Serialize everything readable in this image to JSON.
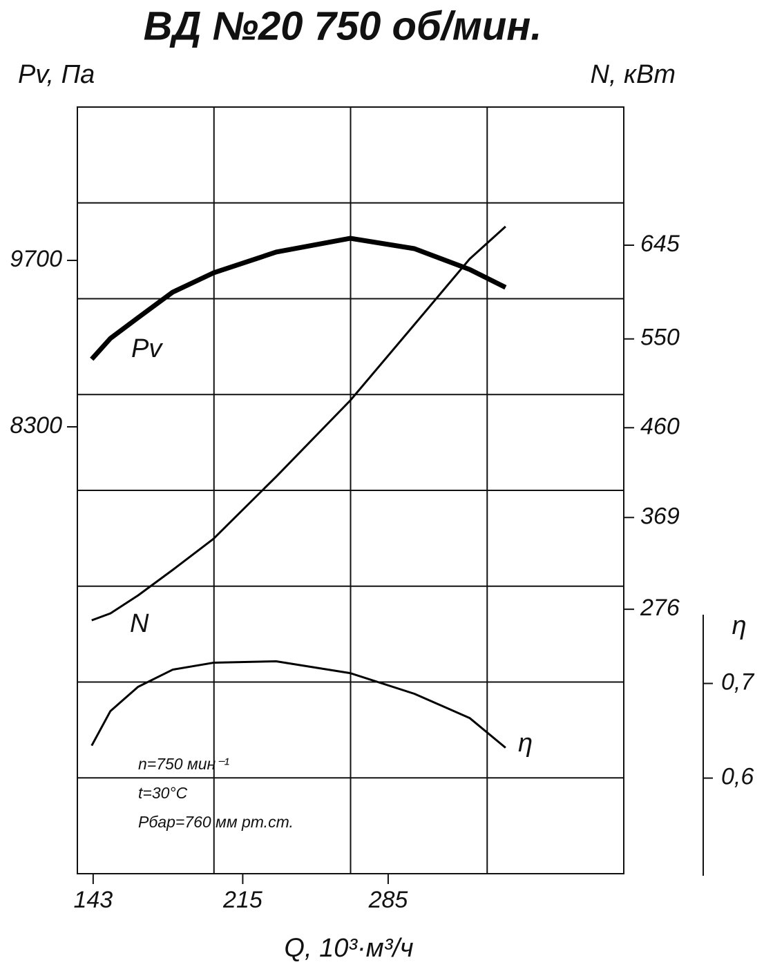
{
  "chart_data": {
    "type": "line",
    "title": "ВД №20 750 об/мин.",
    "x_label": "Q, 10³·м³/ч",
    "y_label": "Pv, Па",
    "y2_label": "N, кВт",
    "y3_label": "η",
    "annotations": [
      "n=750 мин⁻¹",
      "t=30°С",
      "Рбар=760 мм рт.ст."
    ],
    "grid": true,
    "x": [
      142.3,
      151.3,
      164.6,
      181.3,
      200.9,
      231.1,
      266.7,
      297.6,
      324.2,
      341.5
    ],
    "xlim": [
      135.4,
      398.4
    ],
    "xticks": [
      143,
      215,
      285
    ],
    "ylim": [
      4541,
      10990
    ],
    "yticks": [
      8300,
      9700
    ],
    "y2lim": [
      8,
      785
    ],
    "y2ticks": [
      276,
      369,
      460,
      550,
      645
    ],
    "y3lim": [
      0.499,
      1.309
    ],
    "y3ticks": [
      {
        "value": 0.6,
        "label": "0,6"
      },
      {
        "value": 0.7,
        "label": "0,7"
      }
    ],
    "series": [
      {
        "name": "Pv",
        "color": "#000000",
        "axis": "y",
        "width": 7,
        "values": [
          8869,
          9044,
          9218,
          9433,
          9595,
          9770,
          9886,
          9799,
          9624,
          9473
        ]
      },
      {
        "name": "N",
        "color": "#000000",
        "axis": "y2",
        "width": 3,
        "values": [
          264.8,
          271.8,
          290.0,
          315.9,
          347.4,
          410.4,
          487.5,
          564.5,
          631.0,
          663.9
        ]
      },
      {
        "name": "η",
        "color": "#000000",
        "axis": "y3",
        "width": 3,
        "values": [
          0.6343,
          0.6708,
          0.6964,
          0.7146,
          0.7219,
          0.7234,
          0.7109,
          0.6891,
          0.6635,
          0.6321
        ]
      }
    ]
  }
}
